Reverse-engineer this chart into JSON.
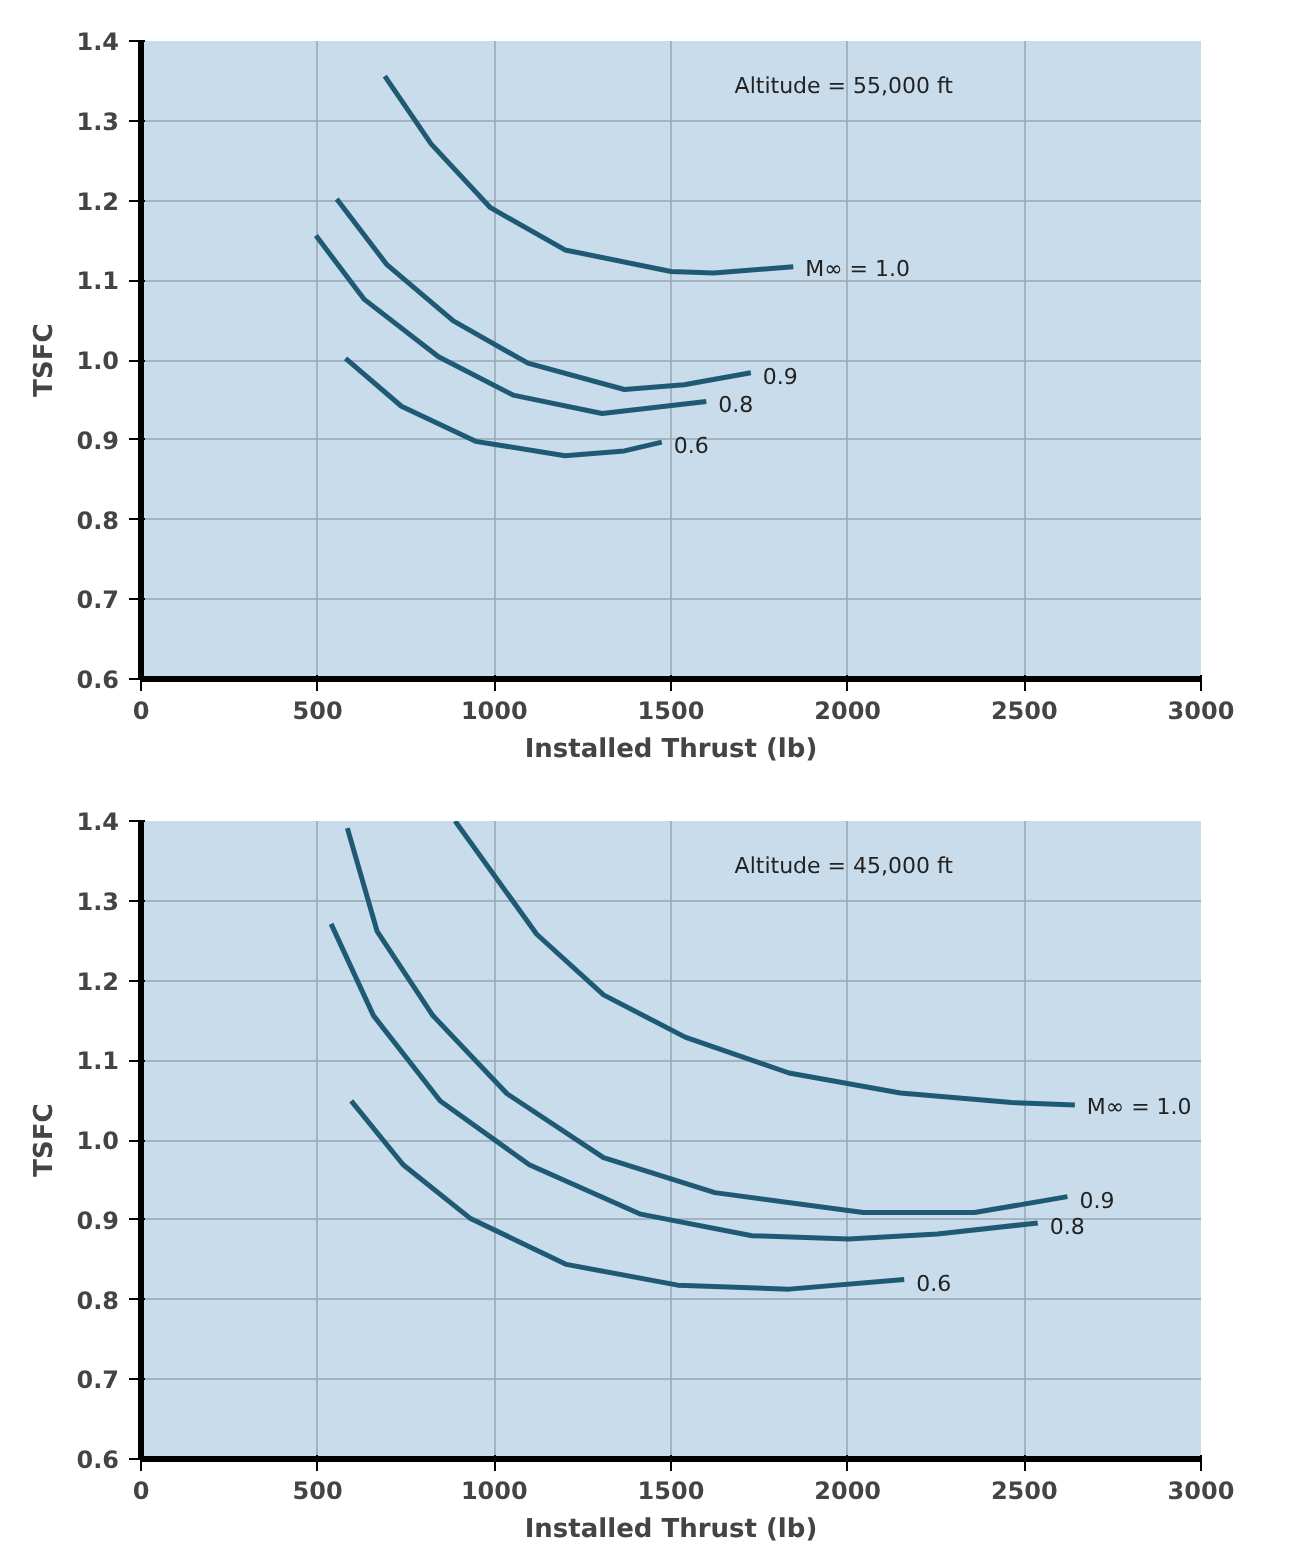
{
  "chart_data": [
    {
      "type": "line",
      "xlabel": "Installed Thrust (lb)",
      "ylabel": "TSFC",
      "annotations": [
        "Altitude = 55,000 ft"
      ],
      "xlim": [
        0,
        3000
      ],
      "ylim": [
        0.6,
        1.4
      ],
      "xticks": [
        0,
        500,
        1000,
        1500,
        2000,
        2500,
        3000
      ],
      "yticks": [
        0.6,
        0.7,
        0.8,
        0.9,
        {
          "value": 1.0,
          "label": "1.0"
        },
        1.1,
        1.2,
        1.3,
        1.4
      ],
      "grid": true,
      "line_style": "solid",
      "series": [
        {
          "name": "M∞ = 1.0",
          "color": "#1f5a75",
          "x": [
            690,
            821,
            989,
            1200,
            1500,
            1621,
            1846
          ],
          "values": [
            1.356,
            1.271,
            1.191,
            1.138,
            1.111,
            1.109,
            1.117
          ]
        },
        {
          "name": "0.9",
          "color": "#1f5a75",
          "x": [
            554,
            695,
            884,
            1095,
            1368,
            1537,
            1726
          ],
          "values": [
            1.202,
            1.12,
            1.049,
            0.996,
            0.963,
            0.969,
            0.984
          ]
        },
        {
          "name": "0.8",
          "color": "#1f5a75",
          "x": [
            495,
            632,
            842,
            1053,
            1305,
            1600
          ],
          "values": [
            1.156,
            1.076,
            1.004,
            0.956,
            0.933,
            0.948
          ]
        },
        {
          "name": "0.6",
          "color": "#1f5a75",
          "x": [
            579,
            737,
            947,
            1200,
            1368,
            1474
          ],
          "values": [
            1.002,
            0.942,
            0.898,
            0.88,
            0.886,
            0.897
          ]
        }
      ]
    },
    {
      "type": "line",
      "xlabel": "Installed Thrust (lb)",
      "ylabel": "TSFC",
      "annotations": [
        "Altitude = 45,000 ft"
      ],
      "xlim": [
        0,
        3000
      ],
      "ylim": [
        0.6,
        1.4
      ],
      "xticks": [
        0,
        500,
        1000,
        1500,
        2000,
        2500,
        3000
      ],
      "yticks": [
        0.6,
        0.7,
        0.8,
        0.9,
        {
          "value": 1.0,
          "label": "1.0"
        },
        1.1,
        1.2,
        1.3,
        1.4
      ],
      "grid": true,
      "line_style": "solid",
      "series": [
        {
          "name": "M∞ = 1.0",
          "color": "#1f5a75",
          "x": [
            889,
            1120,
            1309,
            1540,
            1834,
            2149,
            2464,
            2643
          ],
          "values": [
            1.4,
            1.258,
            1.182,
            1.129,
            1.084,
            1.059,
            1.047,
            1.044
          ]
        },
        {
          "name": "0.9",
          "color": "#1f5a75",
          "x": [
            584,
            668,
            826,
            1036,
            1309,
            1624,
            2044,
            2359,
            2622
          ],
          "values": [
            1.391,
            1.262,
            1.156,
            1.058,
            0.978,
            0.934,
            0.909,
            0.909,
            0.929
          ]
        },
        {
          "name": "0.8",
          "color": "#1f5a75",
          "x": [
            538,
            658,
            847,
            1099,
            1414,
            1729,
            2002,
            2254,
            2538
          ],
          "values": [
            1.271,
            1.156,
            1.049,
            0.969,
            0.907,
            0.88,
            0.876,
            0.882,
            0.896
          ]
        },
        {
          "name": "0.6",
          "color": "#1f5a75",
          "x": [
            595,
            742,
            931,
            1204,
            1519,
            1834,
            2160
          ],
          "values": [
            1.049,
            0.969,
            0.902,
            0.844,
            0.818,
            0.813,
            0.825
          ]
        }
      ]
    }
  ]
}
